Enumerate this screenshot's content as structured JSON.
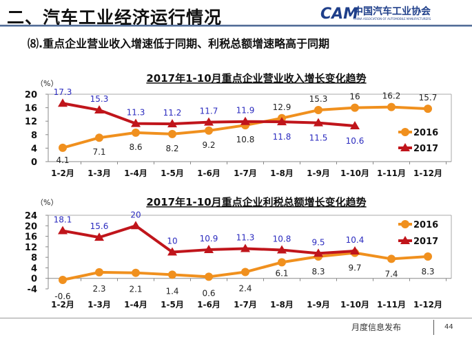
{
  "header": {
    "title": "二、汽车工业经济运行情况",
    "logo_cn": "中国汽车工业协会",
    "logo_en": "CHINA ASSOCIATION OF AUTOMOBILE MANUFACTURERS",
    "logo_mark": "CAM"
  },
  "subtitle": "⑻.重点企业营业收入增速低于同期、利税总额增速略高于同期",
  "footer": {
    "text": "月度信息发布",
    "page": "44"
  },
  "colors": {
    "s2016": "#f0901e",
    "s2017": "#c0151b",
    "label2017": "#2b2bbf",
    "label2016": "#222222"
  },
  "chart_data": [
    {
      "type": "line",
      "title": "2017年1-10月重点企业营业收入增长变化趋势",
      "ylabel": "（%）",
      "ylim": [
        0,
        20
      ],
      "yticks": [
        0,
        4,
        8,
        12,
        16,
        20
      ],
      "legend": "right",
      "categories": [
        "1-2月",
        "1-3月",
        "1-4月",
        "1-5月",
        "1-6月",
        "1-7月",
        "1-8月",
        "1-9月",
        "1-10月",
        "1-11月",
        "1-12月"
      ],
      "series": [
        {
          "name": "2016",
          "values": [
            4.1,
            7.1,
            8.6,
            8.2,
            9.2,
            10.8,
            12.9,
            15.3,
            16,
            16.2,
            15.7
          ]
        },
        {
          "name": "2017",
          "values": [
            17.3,
            15.3,
            11.3,
            11.2,
            11.7,
            11.9,
            11.8,
            11.5,
            10.6,
            null,
            null
          ]
        }
      ]
    },
    {
      "type": "line",
      "title": "2017年1-10月重点企业利税总额增长变化趋势",
      "ylabel": "（%）",
      "ylim": [
        -4,
        24
      ],
      "yticks": [
        -4,
        0,
        4,
        8,
        12,
        16,
        20,
        24
      ],
      "legend": "top-right",
      "categories": [
        "1-2月",
        "1-3月",
        "1-4月",
        "1-5月",
        "1-6月",
        "1-7月",
        "1-8月",
        "1-9月",
        "1-10月",
        "1-11月",
        "1-12月"
      ],
      "series": [
        {
          "name": "2016",
          "values": [
            -0.6,
            2.3,
            2.1,
            1.4,
            0.6,
            2.4,
            6.1,
            8.3,
            9.7,
            7.4,
            8.3
          ]
        },
        {
          "name": "2017",
          "values": [
            18.1,
            15.6,
            20,
            10,
            10.9,
            11.3,
            10.8,
            9.5,
            10.4,
            null,
            null
          ]
        }
      ]
    }
  ]
}
